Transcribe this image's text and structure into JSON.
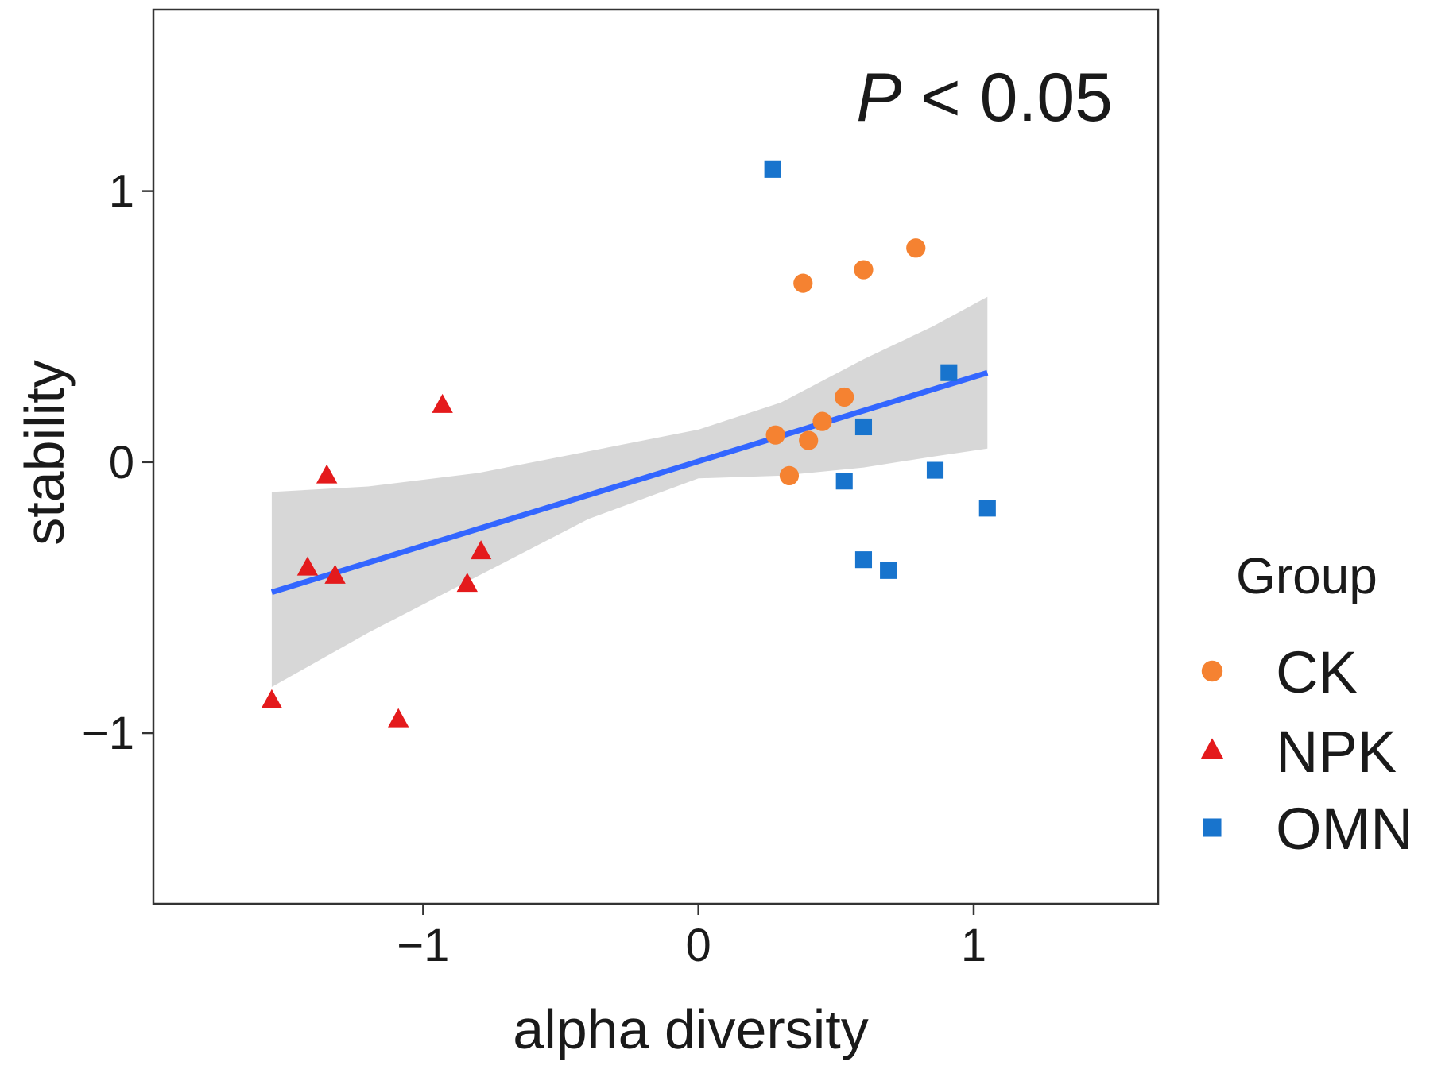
{
  "chart_data": {
    "type": "scatter",
    "xlabel": "alpha diversity",
    "ylabel": "stability",
    "xlim": [
      -1.98,
      1.67
    ],
    "ylim": [
      -1.63,
      1.67
    ],
    "x_ticks": [
      -1,
      0,
      1
    ],
    "x_tick_labels": [
      "−1",
      "0",
      "1"
    ],
    "y_ticks": [
      -1,
      0,
      1
    ],
    "y_tick_labels": [
      "−1",
      "0",
      "1"
    ],
    "grid": false,
    "annotation": {
      "italic": "P",
      "rest": " < 0.05",
      "position": "top-right"
    },
    "legend": {
      "title": "Group",
      "placement": "right"
    },
    "series": [
      {
        "name": "CK",
        "marker": "circle",
        "color": "#F58231",
        "points": [
          [
            0.38,
            0.66
          ],
          [
            0.6,
            0.71
          ],
          [
            0.79,
            0.79
          ],
          [
            0.28,
            0.1
          ],
          [
            0.4,
            0.08
          ],
          [
            0.45,
            0.15
          ],
          [
            0.53,
            0.24
          ],
          [
            0.33,
            -0.05
          ]
        ]
      },
      {
        "name": "NPK",
        "marker": "triangle",
        "color": "#E41A1C",
        "points": [
          [
            -0.93,
            0.21
          ],
          [
            -1.35,
            -0.05
          ],
          [
            -1.42,
            -0.39
          ],
          [
            -1.32,
            -0.42
          ],
          [
            -0.79,
            -0.33
          ],
          [
            -0.84,
            -0.45
          ],
          [
            -1.55,
            -0.88
          ],
          [
            -1.09,
            -0.95
          ]
        ]
      },
      {
        "name": "OMN",
        "marker": "square",
        "color": "#1874CD",
        "points": [
          [
            0.27,
            1.08
          ],
          [
            0.91,
            0.33
          ],
          [
            0.6,
            0.13
          ],
          [
            0.53,
            -0.07
          ],
          [
            0.86,
            -0.03
          ],
          [
            1.05,
            -0.17
          ],
          [
            0.6,
            -0.36
          ],
          [
            0.69,
            -0.4
          ]
        ]
      }
    ],
    "fit": {
      "color": "#3366FF",
      "band_color": "#D0D0D0",
      "x": [
        -1.55,
        1.05
      ],
      "y": [
        -0.48,
        0.33
      ],
      "band": [
        {
          "x": -1.55,
          "lower": -0.83,
          "upper": -0.11
        },
        {
          "x": -1.2,
          "lower": -0.63,
          "upper": -0.09
        },
        {
          "x": -0.8,
          "lower": -0.42,
          "upper": -0.04
        },
        {
          "x": -0.4,
          "lower": -0.21,
          "upper": 0.04
        },
        {
          "x": 0.0,
          "lower": -0.06,
          "upper": 0.12
        },
        {
          "x": 0.3,
          "lower": -0.05,
          "upper": 0.22
        },
        {
          "x": 0.6,
          "lower": -0.02,
          "upper": 0.38
        },
        {
          "x": 0.85,
          "lower": 0.02,
          "upper": 0.5
        },
        {
          "x": 1.05,
          "lower": 0.05,
          "upper": 0.61
        }
      ]
    }
  }
}
